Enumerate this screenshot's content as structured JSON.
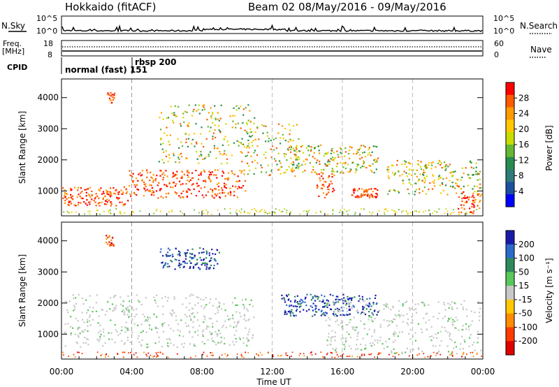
{
  "header": {
    "station": "Hokkaido (fitACF)",
    "beam_info": "Beam 02  08/May/2016 - 09/May/2016"
  },
  "strips": {
    "nsky_label": "N.Sky",
    "nsearch_label": "N.Search",
    "nsky_ticks": [
      "10^5",
      "10^0"
    ],
    "nsky_ticks_right": [
      "10^5",
      "10^0"
    ],
    "freq_label_line1": "Freq.",
    "freq_label_line2": "[MHz]",
    "freq_ticks": [
      "18",
      "8"
    ],
    "nave_ticks": [
      "60",
      "0"
    ],
    "nave_label": "Nave",
    "cpid_label": "CPID",
    "cpid_segments": [
      {
        "name": "normal (fast) 151",
        "start_hour": 0,
        "end_hour": 4.0
      },
      {
        "name": "rbsp 200",
        "start_hour": 4.0,
        "end_hour": 24.0
      }
    ]
  },
  "colorbars": {
    "power": {
      "label": "Power [dB]",
      "ticks": [
        "28",
        "24",
        "20",
        "16",
        "12",
        "8",
        "4"
      ],
      "colors": [
        "#ff0000",
        "#ff5a00",
        "#ff9a00",
        "#ffc800",
        "#c8dc00",
        "#64b832",
        "#288c50",
        "#2f7a7a",
        "#1e50a0",
        "#0000ff"
      ]
    },
    "velocity": {
      "label": "Velocity [m s⁻¹]",
      "ticks": [
        "200",
        "100",
        "50",
        "15",
        "-15",
        "-50",
        "-100",
        "-200"
      ],
      "colors": [
        "#1a1aaa",
        "#2a6ac8",
        "#2e8a5a",
        "#5ac85a",
        "#c8c8c8",
        "#ffc800",
        "#ff8c00",
        "#ff3c00",
        "#e00000"
      ]
    }
  },
  "chart_data": [
    {
      "type": "heatmap",
      "name": "power",
      "ylabel": "Slant Range [km]",
      "xlabel": "",
      "xlim_hours": [
        0,
        24
      ],
      "ylim": [
        200,
        4600
      ],
      "y_ticks": [
        1000,
        2000,
        3000,
        4000
      ],
      "grid": false,
      "reference_lines_hours": [
        4,
        12,
        16,
        20
      ],
      "bands": [
        {
          "t0": 0.0,
          "t1": 3.8,
          "r0": 550,
          "r1": 1150,
          "level": "high"
        },
        {
          "t0": 3.8,
          "t1": 10.5,
          "r0": 800,
          "r1": 1700,
          "level": "high"
        },
        {
          "t0": 2.5,
          "t1": 3.0,
          "r0": 3850,
          "r1": 4200,
          "level": "high"
        },
        {
          "t0": 5.5,
          "t1": 11.0,
          "r0": 1900,
          "r1": 3800,
          "level": "medium"
        },
        {
          "t0": 10.5,
          "t1": 13.5,
          "r0": 1500,
          "r1": 3200,
          "level": "medium"
        },
        {
          "t0": 13.0,
          "t1": 18.0,
          "r0": 1600,
          "r1": 2500,
          "level": "medium"
        },
        {
          "t0": 14.5,
          "t1": 15.5,
          "r0": 800,
          "r1": 1600,
          "level": "high"
        },
        {
          "t0": 16.5,
          "t1": 18.0,
          "r0": 800,
          "r1": 1100,
          "level": "high"
        },
        {
          "t0": 18.5,
          "t1": 24.0,
          "r0": 900,
          "r1": 2000,
          "level": "medium"
        },
        {
          "t0": 22.5,
          "t1": 24.0,
          "r0": 300,
          "r1": 1000,
          "level": "high"
        }
      ]
    },
    {
      "type": "heatmap",
      "name": "velocity",
      "ylabel": "Slant Range [km]",
      "xlabel": "Time UT",
      "xlim_hours": [
        0,
        24
      ],
      "ylim": [
        200,
        4600
      ],
      "y_ticks": [
        1000,
        2000,
        3000,
        4000
      ],
      "x_tick_labels": [
        "00:00",
        "04:00",
        "08:00",
        "12:00",
        "16:00",
        "20:00",
        "00:00"
      ],
      "grid": false,
      "reference_lines_hours": [
        4,
        12,
        16,
        20
      ],
      "bands": [
        {
          "t0": 0.0,
          "t1": 11.0,
          "r0": 600,
          "r1": 2300,
          "level": "ground"
        },
        {
          "t0": 2.5,
          "t1": 3.0,
          "r0": 3850,
          "r1": 4200,
          "level": "negative"
        },
        {
          "t0": 5.5,
          "t1": 9.0,
          "r0": 3100,
          "r1": 3800,
          "level": "positive"
        },
        {
          "t0": 12.5,
          "t1": 18.0,
          "r0": 1600,
          "r1": 2300,
          "level": "positive"
        },
        {
          "t0": 15.0,
          "t1": 24.0,
          "r0": 400,
          "r1": 2100,
          "level": "ground"
        }
      ]
    }
  ]
}
